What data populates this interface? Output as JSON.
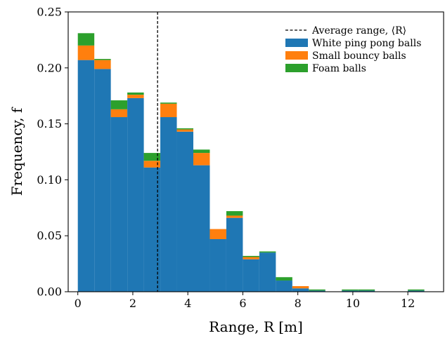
{
  "chart_data": {
    "type": "bar",
    "stacked": true,
    "xlabel": "Range, R [m]",
    "ylabel": "Frequency, f",
    "xlim": [
      -0.35,
      13.3
    ],
    "ylim": [
      0,
      0.25
    ],
    "xticks": [
      0,
      2,
      4,
      6,
      8,
      10,
      12
    ],
    "yticks": [
      0.0,
      0.05,
      0.1,
      0.15,
      0.2,
      0.25
    ],
    "ytick_labels": [
      "0.00",
      "0.05",
      "0.10",
      "0.15",
      "0.20",
      "0.25"
    ],
    "bin_edges": [
      0.0,
      0.6,
      1.2,
      1.8,
      2.4,
      3.0,
      3.6,
      4.2,
      4.8,
      5.4,
      6.0,
      6.6,
      7.2,
      7.8,
      8.4,
      9.0,
      9.6,
      10.2,
      10.8,
      11.4,
      12.0,
      12.6
    ],
    "average_range": 2.9,
    "grid": false,
    "legend_position": "top-right",
    "legend": {
      "average_label": "Average range, ⟨R⟩"
    },
    "series": [
      {
        "name": "White ping pong balls",
        "color": "#1f77b4",
        "values": [
          0.207,
          0.199,
          0.156,
          0.173,
          0.111,
          0.156,
          0.143,
          0.113,
          0.047,
          0.066,
          0.029,
          0.035,
          0.01,
          0.003,
          0.001,
          0.0,
          0.001,
          0.001,
          0.0,
          0.0,
          0.001
        ]
      },
      {
        "name": "Small bouncy balls",
        "color": "#ff7f0e",
        "values": [
          0.013,
          0.008,
          0.007,
          0.003,
          0.006,
          0.012,
          0.002,
          0.011,
          0.009,
          0.002,
          0.002,
          0.0,
          0.0,
          0.002,
          0.0,
          0.0,
          0.0,
          0.0,
          0.0,
          0.0,
          0.0
        ]
      },
      {
        "name": "Foam balls",
        "color": "#2ca02c",
        "values": [
          0.011,
          0.001,
          0.008,
          0.002,
          0.007,
          0.001,
          0.001,
          0.003,
          0.0,
          0.004,
          0.001,
          0.001,
          0.003,
          0.0,
          0.001,
          0.0,
          0.001,
          0.001,
          0.0,
          0.0,
          0.001
        ]
      }
    ]
  }
}
